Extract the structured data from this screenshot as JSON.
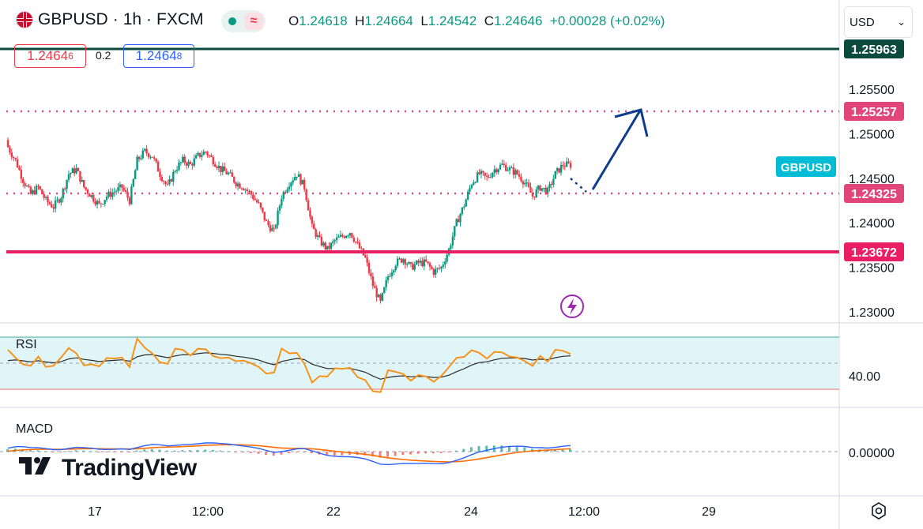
{
  "header": {
    "symbol": "GBPUSD",
    "interval": "1h",
    "exchange": "FXCM",
    "open_label": "O",
    "open": "1.24618",
    "high_label": "H",
    "high": "1.24664",
    "low_label": "L",
    "low": "1.24542",
    "close_label": "C",
    "close": "1.24646",
    "change": "+0.00028 (+0.02%)",
    "wave_icon": "≈"
  },
  "bid": {
    "main": "1.2464",
    "sup": "6"
  },
  "ask": {
    "main": "1.2464",
    "sup": "8"
  },
  "spread": "0.2",
  "currency": "USD",
  "colors": {
    "up": "#089981",
    "down": "#f23645",
    "level_line": "#e91e63",
    "dotted_level": "#e2457a",
    "top_line": "#0b4b3e",
    "arrow": "#0d3c8c",
    "rsi": "#f7931a",
    "rsi_ma": "#2b2b2b",
    "macd": "#2962ff",
    "macd_signal": "#ff6d00",
    "badge_symbol": "#00bcd4"
  },
  "price_axis": {
    "ticks": [
      "1.25500",
      "1.25000",
      "1.24500",
      "1.24000",
      "1.23500",
      "1.23000"
    ]
  },
  "levels": {
    "top": "1.25963",
    "target": "1.25257",
    "current": "1.24325",
    "support": "1.23672"
  },
  "symbol_badge": "GBPUSD",
  "rsi": {
    "title": "RSI",
    "tick": "40.00"
  },
  "macd": {
    "title": "MACD",
    "tick": "0.00000"
  },
  "time_axis": {
    "ticks": [
      "17",
      "12:00",
      "22",
      "24",
      "12:00",
      "29"
    ]
  },
  "brand": "TradingView",
  "chart_data": {
    "type": "candlestick",
    "symbol": "GBPUSD",
    "interval": "1h",
    "ohlc_last": {
      "open": 1.24618,
      "high": 1.24664,
      "low": 1.24542,
      "close": 1.24646
    },
    "close_path": [
      1.2485,
      1.247,
      1.2448,
      1.2432,
      1.244,
      1.2425,
      1.2418,
      1.243,
      1.2455,
      1.246,
      1.244,
      1.243,
      1.242,
      1.243,
      1.2435,
      1.244,
      1.2425,
      1.247,
      1.248,
      1.2475,
      1.2455,
      1.244,
      1.246,
      1.247,
      1.2465,
      1.2475,
      1.248,
      1.247,
      1.246,
      1.2455,
      1.2445,
      1.244,
      1.2432,
      1.242,
      1.24,
      1.239,
      1.243,
      1.2445,
      1.2455,
      1.244,
      1.2395,
      1.238,
      1.237,
      1.238,
      1.2385,
      1.239,
      1.2375,
      1.236,
      1.233,
      1.231,
      1.234,
      1.2355,
      1.236,
      1.235,
      1.2355,
      1.2355,
      1.2345,
      1.235,
      1.237,
      1.24,
      1.242,
      1.2445,
      1.2455,
      1.245,
      1.246,
      1.2465,
      1.246,
      1.2455,
      1.2445,
      1.243,
      1.244,
      1.2435,
      1.2455,
      1.2465,
      1.2465
    ],
    "levels": [
      1.25963,
      1.25257,
      1.24325,
      1.23672
    ],
    "y_range": [
      1.229,
      1.2605
    ],
    "rsi_tick": 40.0,
    "macd_tick": 0.0,
    "projection": "arrow up from 1.24325 to 1.25257"
  }
}
